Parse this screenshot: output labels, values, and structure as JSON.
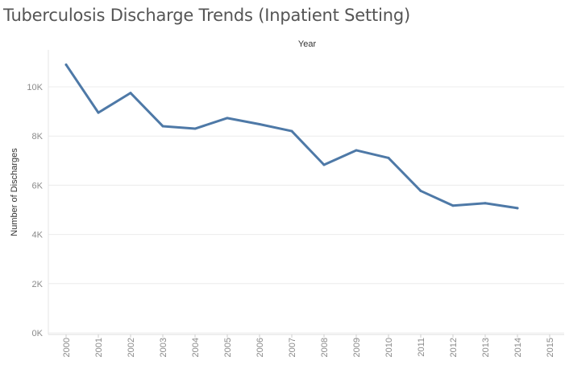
{
  "chart_data": {
    "type": "line",
    "title": "Tuberculosis Discharge Trends (Inpatient Setting)",
    "xlabel": "Year",
    "ylabel": "Number of Discharges",
    "x_ticks": [
      "2000",
      "2001",
      "2002",
      "2003",
      "2004",
      "2005",
      "2006",
      "2007",
      "2008",
      "2009",
      "2010",
      "2011",
      "2012",
      "2013",
      "2014",
      "2015"
    ],
    "y_ticks": [
      {
        "value": 0,
        "label": "0K"
      },
      {
        "value": 2000,
        "label": "2K"
      },
      {
        "value": 4000,
        "label": "4K"
      },
      {
        "value": 6000,
        "label": "6K"
      },
      {
        "value": 8000,
        "label": "8K"
      },
      {
        "value": 10000,
        "label": "10K"
      }
    ],
    "ylim": [
      0,
      11500
    ],
    "grid": true,
    "colors": {
      "line": "#4e79a7",
      "grid": "#ececec"
    },
    "series": [
      {
        "x": [
          2000,
          2001,
          2002,
          2003,
          2004,
          2005,
          2006,
          2007,
          2008,
          2009,
          2010,
          2011,
          2012,
          2013,
          2014
        ],
        "values": [
          10900,
          8950,
          9750,
          8400,
          8300,
          8730,
          8480,
          8200,
          6830,
          7420,
          7110,
          5770,
          5170,
          5270,
          5070
        ]
      }
    ]
  }
}
